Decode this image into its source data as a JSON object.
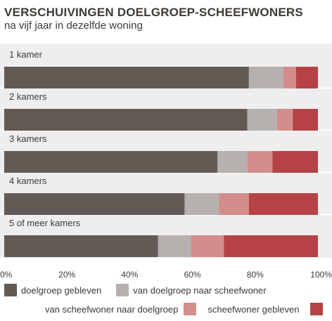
{
  "header": {
    "title": "VERSCHUIVINGEN DOELGROEP-SCHEEFWONERS",
    "subtitle": "na vijf jaar in dezelfde woning"
  },
  "legend": {
    "items": [
      {
        "label": "doelgroep gebleven",
        "color": "#625a55"
      },
      {
        "label": "van doelgroep naar scheefwoner",
        "color": "#b6b1ae"
      },
      {
        "label": "van scheefwoner naar doelgroep",
        "color": "#d38d8a"
      },
      {
        "label": "scheefwoner gebleven",
        "color": "#b54245"
      }
    ]
  },
  "chart_data": {
    "type": "bar",
    "orientation": "horizontal",
    "stacked": true,
    "categories": [
      "1 kamer",
      "2 kamers",
      "3 kamers",
      "4 kamers",
      "5 of meer kamers"
    ],
    "series": [
      {
        "name": "doelgroep gebleven",
        "color": "#625a55",
        "values": [
          78,
          77.5,
          68,
          57.5,
          49
        ]
      },
      {
        "name": "van doelgroep naar scheefwoner",
        "color": "#b6b1ae",
        "values": [
          11,
          9.5,
          9.5,
          11,
          10.5
        ]
      },
      {
        "name": "van scheefwoner naar doelgroep",
        "color": "#d38d8a",
        "values": [
          4,
          5,
          8,
          9.5,
          10.5
        ]
      },
      {
        "name": "scheefwoner gebleven",
        "color": "#b54245",
        "values": [
          7,
          8,
          14.5,
          22,
          30
        ]
      }
    ],
    "xticks": [
      "0%",
      "20%",
      "40%",
      "60%",
      "80%",
      "100%"
    ],
    "xlim": [
      0,
      100
    ],
    "background": "#eeeeee"
  }
}
